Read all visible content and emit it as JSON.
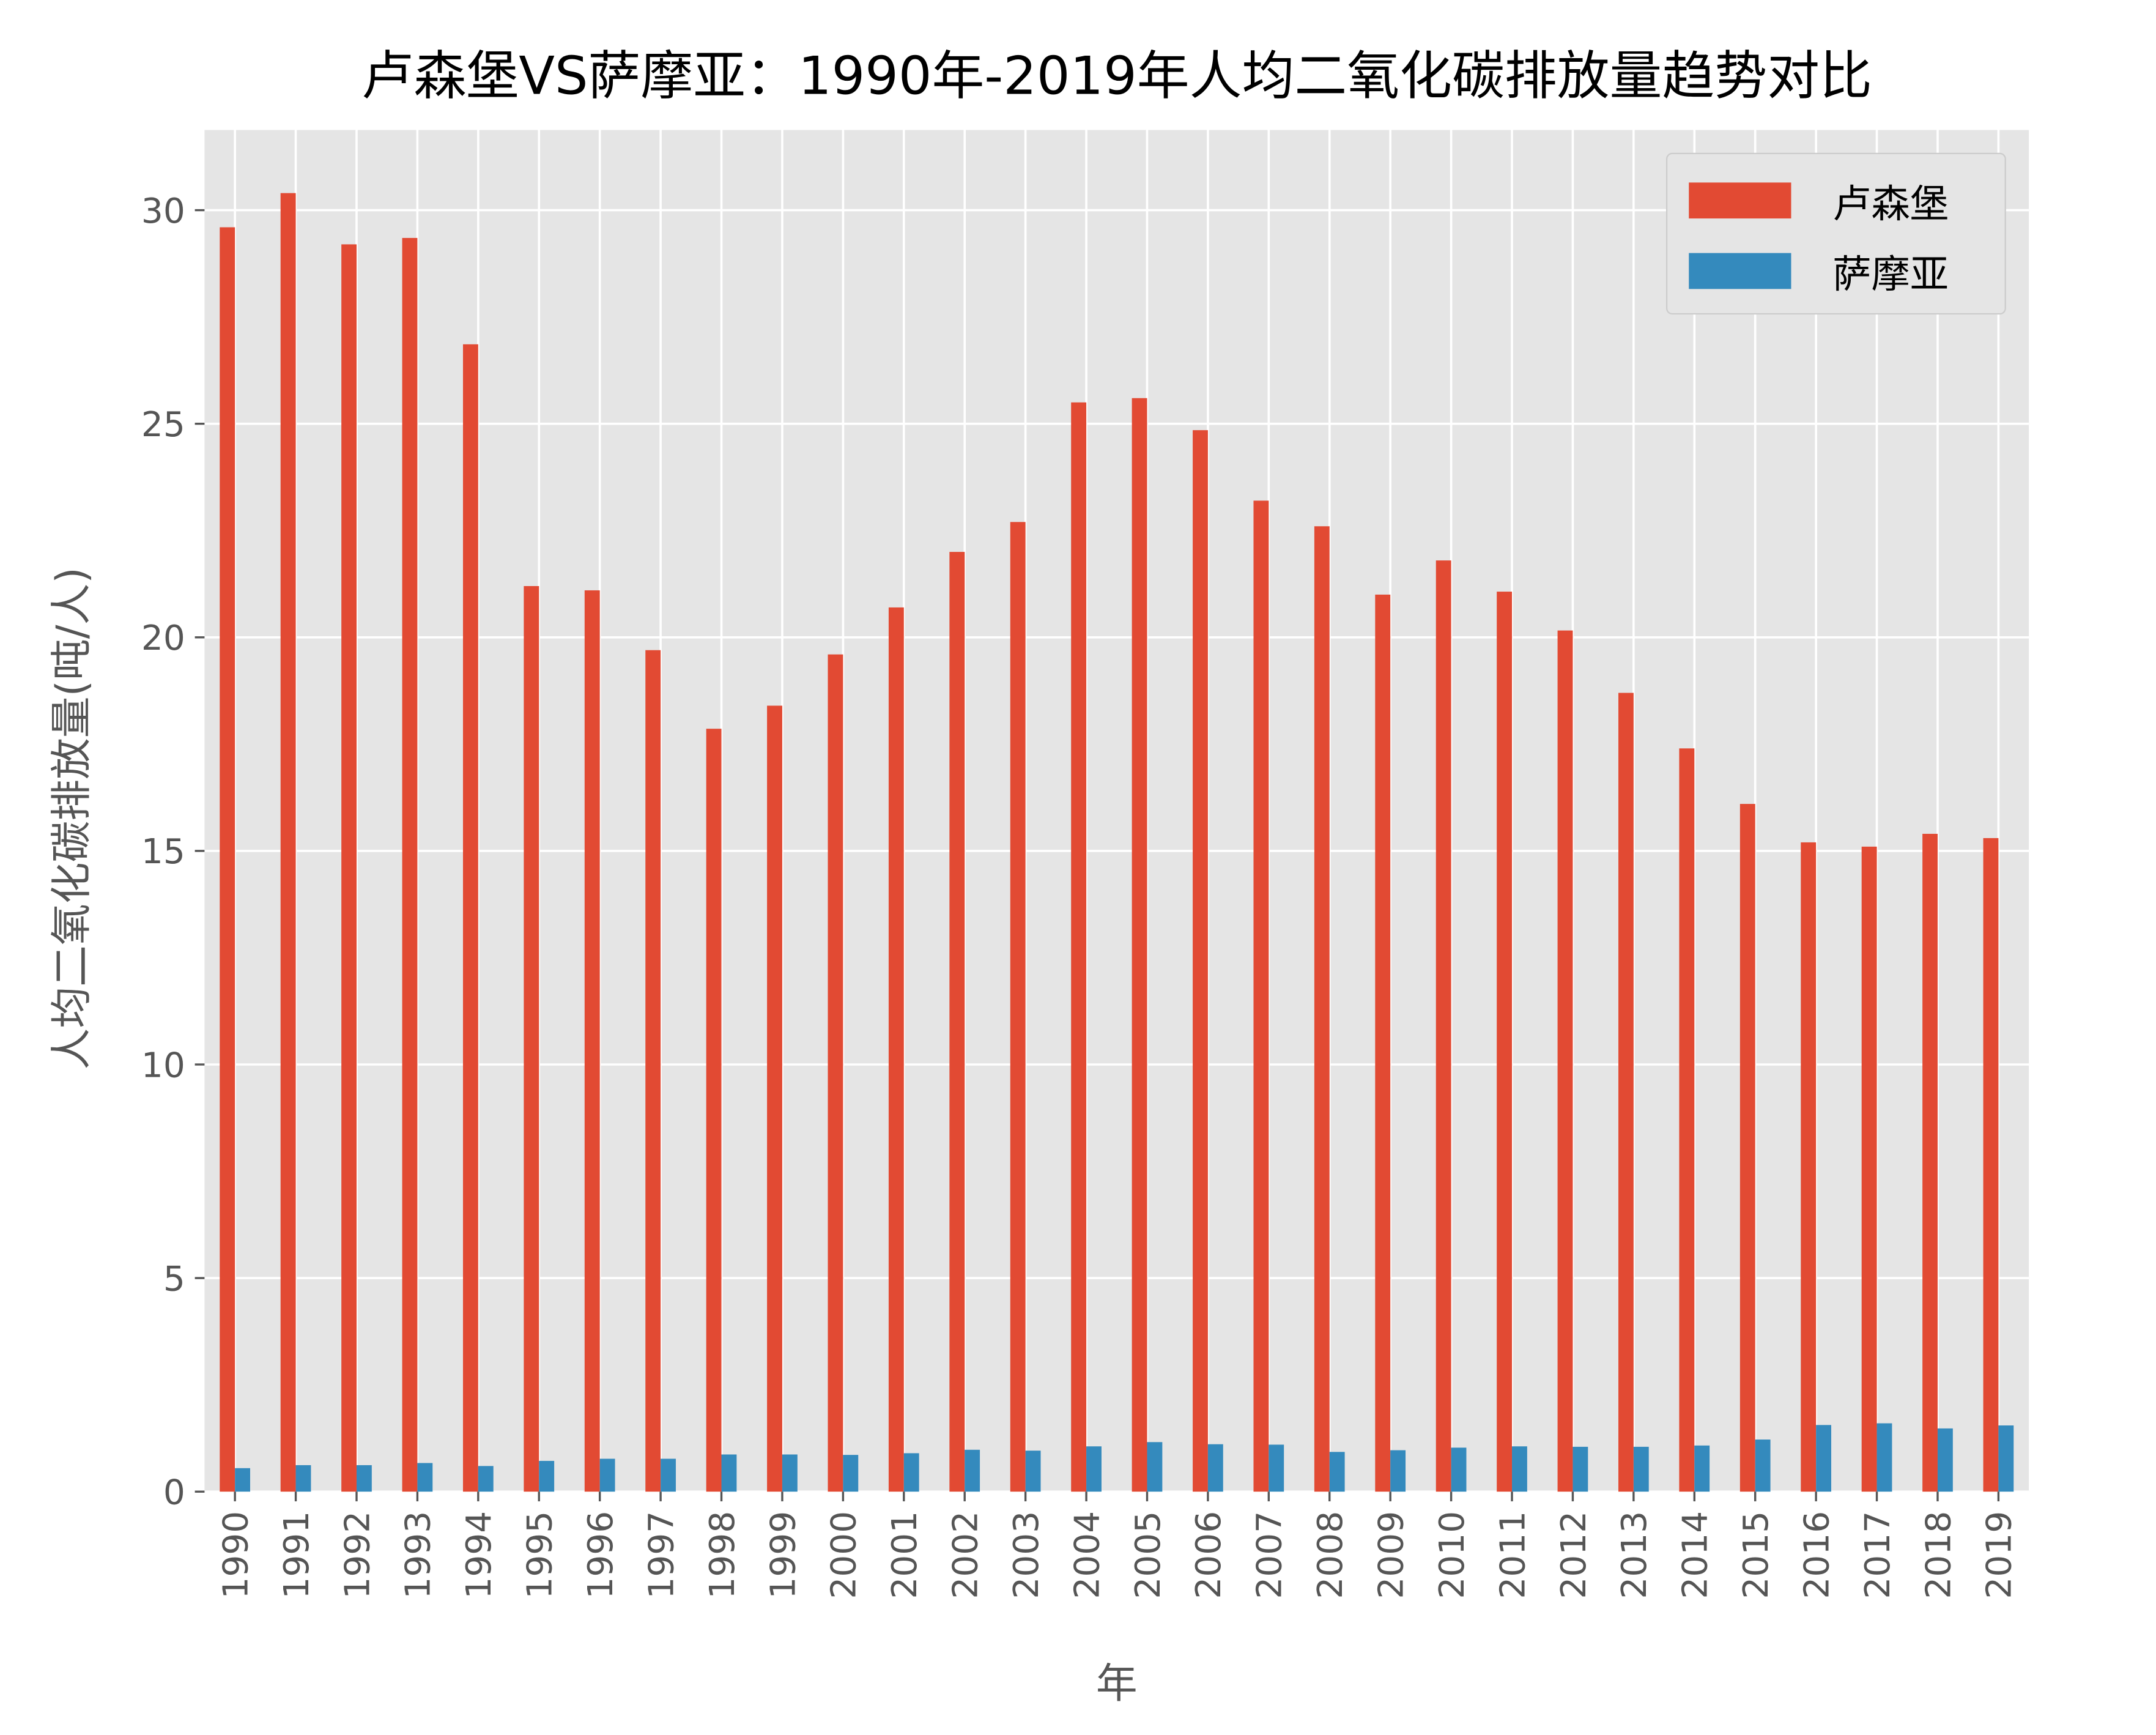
{
  "chart_data": {
    "type": "bar",
    "title": "卢森堡VS萨摩亚：1990年-2019年人均二氧化碳排放量趋势对比",
    "xlabel": "年",
    "ylabel": "人均二氧化碳排放量(吨/人)",
    "ylim": [
      0,
      31.8
    ],
    "yticks": [
      0,
      5,
      10,
      15,
      20,
      25,
      30
    ],
    "grid": true,
    "legend_position": "top-right",
    "categories": [
      "1990",
      "1991",
      "1992",
      "1993",
      "1994",
      "1995",
      "1996",
      "1997",
      "1998",
      "1999",
      "2000",
      "2001",
      "2002",
      "2003",
      "2004",
      "2005",
      "2006",
      "2007",
      "2008",
      "2009",
      "2010",
      "2011",
      "2012",
      "2013",
      "2014",
      "2015",
      "2016",
      "2017",
      "2018",
      "2019"
    ],
    "series": [
      {
        "name": "卢森堡",
        "color": "#E24A33",
        "values": [
          29.6,
          30.4,
          29.2,
          29.35,
          26.86,
          21.2,
          21.1,
          19.7,
          17.86,
          18.4,
          19.6,
          20.7,
          22.0,
          22.7,
          25.5,
          25.6,
          24.85,
          23.2,
          22.6,
          21.0,
          21.8,
          21.07,
          20.16,
          18.7,
          17.4,
          16.1,
          15.2,
          15.1,
          15.4,
          15.3
        ]
      },
      {
        "name": "萨摩亚",
        "color": "#348ABD",
        "values": [
          0.55,
          0.62,
          0.62,
          0.67,
          0.6,
          0.72,
          0.77,
          0.77,
          0.87,
          0.87,
          0.86,
          0.9,
          0.98,
          0.96,
          1.06,
          1.16,
          1.11,
          1.1,
          0.93,
          0.97,
          1.03,
          1.06,
          1.05,
          1.05,
          1.08,
          1.22,
          1.56,
          1.6,
          1.48,
          1.55
        ]
      }
    ]
  }
}
